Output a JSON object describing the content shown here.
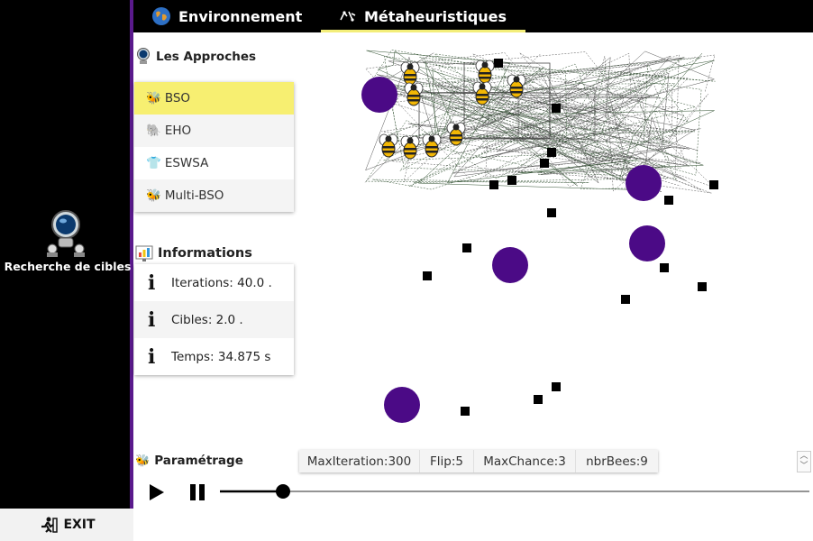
{
  "app": {
    "title": "Recherche de cibles",
    "exit_label": "EXIT"
  },
  "tabs": [
    {
      "label": "Environnement",
      "icon": "globe-icon",
      "active": false
    },
    {
      "label": "Métaheuristiques",
      "icon": "swarm-icon",
      "active": true
    }
  ],
  "approaches": {
    "heading": "Les Approches",
    "items": [
      {
        "label": "BSO",
        "icon": "bee-icon",
        "selected": true
      },
      {
        "label": "EHO",
        "icon": "elephant-icon",
        "selected": false
      },
      {
        "label": "ESWSA",
        "icon": "shirt-icon",
        "selected": false
      },
      {
        "label": "Multi-BSO",
        "icon": "bee-icon",
        "selected": false
      }
    ]
  },
  "informations": {
    "heading": "Informations",
    "rows": [
      {
        "text": "Iterations:  40.0 ."
      },
      {
        "text": "Cibles:  2.0 ."
      },
      {
        "text": "Temps:  34.875 s"
      }
    ]
  },
  "parametrage": {
    "heading": "Paramétrage",
    "params": [
      "MaxIteration:300",
      "Flip:5",
      "MaxChance:3",
      "nbrBees:9"
    ]
  },
  "controls": {
    "slider_fraction": 0.107
  },
  "colors": {
    "accent": "#5a1a8c",
    "selected": "#f7ef71",
    "target": "#4b0a86",
    "tab_underline": "#f3ee7a"
  }
}
